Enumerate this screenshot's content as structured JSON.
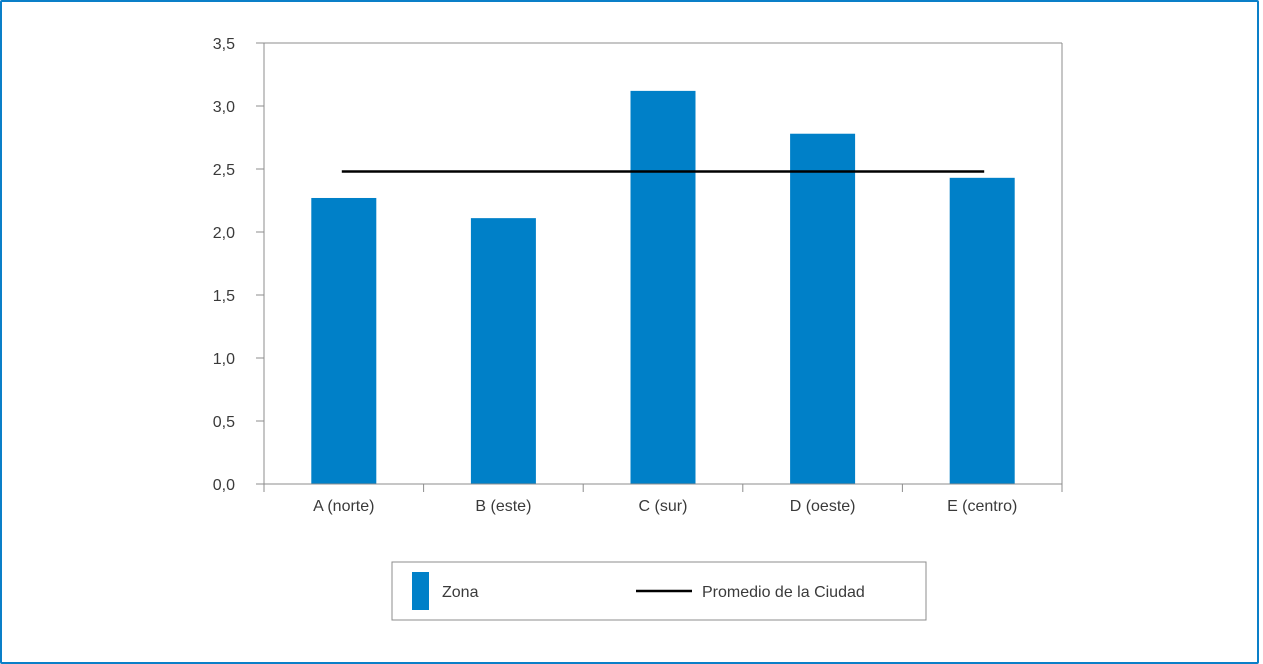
{
  "chart_data": {
    "type": "bar",
    "categories": [
      "A (norte)",
      "B (este)",
      "C (sur)",
      "D (oeste)",
      "E (centro)"
    ],
    "series": [
      {
        "name": "Zona",
        "values": [
          2.27,
          2.11,
          3.12,
          2.78,
          2.43
        ],
        "color": "#0080c8"
      }
    ],
    "reference_line": {
      "name": "Promedio de la Ciudad",
      "value": 2.48,
      "color": "#000000"
    },
    "ylim": [
      0,
      3.5
    ],
    "yticks": [
      0,
      0.5,
      1.0,
      1.5,
      2.0,
      2.5,
      3.0,
      3.5
    ],
    "ytick_labels": [
      "0,0",
      "0,5",
      "1,0",
      "1,5",
      "2,0",
      "2,5",
      "3,0",
      "3,5"
    ],
    "title": "",
    "xlabel": "",
    "ylabel": "",
    "grid": false,
    "legend": {
      "position": "bottom",
      "items": [
        "Zona",
        "Promedio de la Ciudad"
      ]
    }
  },
  "colors": {
    "frame_border": "#0a7fc8",
    "axis": "#8c8c8c",
    "text": "#3a3a3a"
  }
}
